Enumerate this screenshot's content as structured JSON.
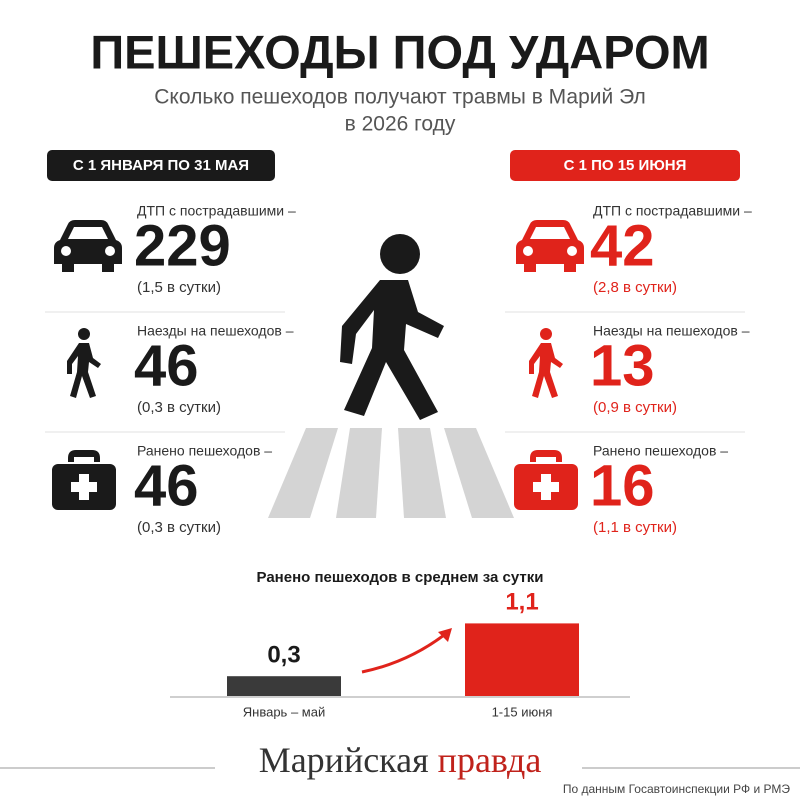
{
  "header": {
    "title": "ПЕШЕХОДЫ ПОД УДАРОМ",
    "subtitle_lines": [
      "Сколько пешеходов получают травмы в Марий Эл",
      "в 2026 году"
    ]
  },
  "left": {
    "tag": "С 1 ЯНВАРЯ ПО 31 МАЯ",
    "rows": [
      {
        "label": "ДТП с пострадавшими –",
        "value": 229,
        "note": "(1,5 в сутки)"
      },
      {
        "label": "Наезды на пешеходов –",
        "value": 46,
        "note": "(0,3 в сутки)"
      },
      {
        "label": "Ранено пешеходов –",
        "value": 46,
        "note": "(0,3 в сутки)"
      }
    ]
  },
  "right": {
    "tag": "С 1 ПО 15 ИЮНЯ",
    "rows": [
      {
        "label": "ДТП с пострадавшими –",
        "value": 42,
        "note": "(2,8 в сутки)"
      },
      {
        "label": "Наезды на пешеходов –",
        "value": 13,
        "note": "(0,9 в сутки)"
      },
      {
        "label": "Ранено пешеходов –",
        "value": 16,
        "note": "(1,1 в сутки)"
      }
    ]
  },
  "chart_data": {
    "type": "bar",
    "title": "Ранено пешеходов в среднем за сутки",
    "categories": [
      "Январь – май",
      "1-15 июня"
    ],
    "series": [
      {
        "values": [
          0.3,
          1.1
        ],
        "value_labels": [
          "0,3",
          "1,1"
        ],
        "colors": [
          "#3a3a3a",
          "#e0231b"
        ]
      }
    ]
  },
  "footer": {
    "brand_first": "Марийская",
    "brand_second": "правда",
    "source": "По данным Госавтоинспекции РФ и РМЭ"
  }
}
